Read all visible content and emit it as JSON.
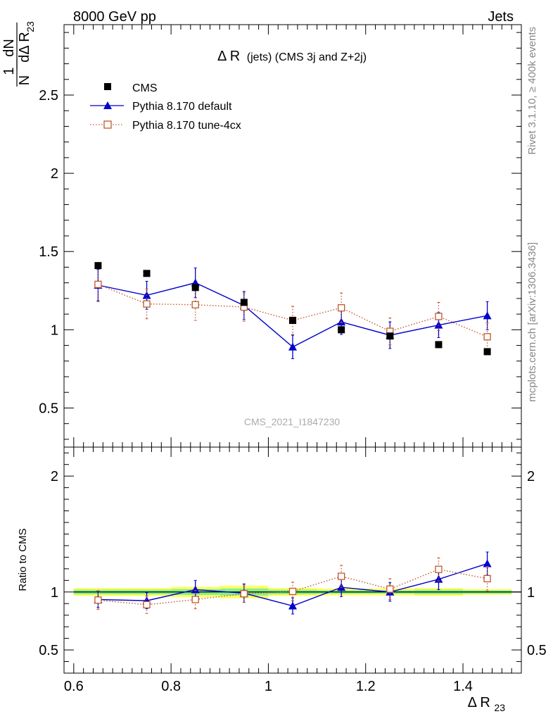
{
  "header": {
    "left": "8000 GeV pp",
    "right": "Jets"
  },
  "side_text": {
    "rivet": "Rivet 3.1.10, ≥ 400k events",
    "mcplots": "mcplots.cern.ch [arXiv:1306.3436]"
  },
  "chart_data": [
    {
      "type": "scatter",
      "title": "Δ R (jets) (CMS 3j and Z+2j)",
      "title_main": "Δ R",
      "title_rest": "(jets) (CMS 3j and Z+2j)",
      "ylabel": "1/N dN/dΔ R23",
      "ylabel_parts": {
        "one": "1",
        "N": "N",
        "dN": "dN",
        "d": "dΔ R",
        "sub": "23"
      },
      "watermark": "CMS_2021_I1847230",
      "xlim": [
        0.58,
        1.52
      ],
      "ylim": [
        0.25,
        2.95
      ],
      "yticks": [
        0.5,
        1,
        1.5,
        2,
        2.5
      ],
      "ytick_labels": [
        "0.5",
        "1",
        "1.5",
        "2",
        "2.5"
      ],
      "legend_position": "top-left",
      "x": [
        0.65,
        0.75,
        0.85,
        0.95,
        1.05,
        1.15,
        1.25,
        1.35,
        1.45
      ],
      "series": [
        {
          "name": "CMS",
          "color": "#000000",
          "marker": "filled-square",
          "values": [
            1.41,
            1.36,
            1.27,
            1.175,
            1.06,
            1.0,
            0.96,
            0.905,
            0.86
          ],
          "errors": [
            0.0,
            0.0,
            0.0,
            0.0,
            0.0,
            0.0,
            0.0,
            0.0,
            0.0
          ]
        },
        {
          "name": "Pythia 8.170 default",
          "color": "#0000cc",
          "marker": "filled-triangle",
          "line": "solid",
          "values": [
            1.285,
            1.22,
            1.3,
            1.155,
            0.89,
            1.05,
            0.965,
            1.03,
            1.09
          ],
          "errors": [
            0.1,
            0.09,
            0.095,
            0.09,
            0.075,
            0.08,
            0.085,
            0.08,
            0.09
          ]
        },
        {
          "name": "Pythia 8.170 tune-4cx",
          "color": "#c0582a",
          "marker": "open-square",
          "line": "dotted",
          "values": [
            1.29,
            1.165,
            1.16,
            1.145,
            1.06,
            1.14,
            0.99,
            1.085,
            0.955
          ],
          "errors": [
            0.11,
            0.095,
            0.1,
            0.09,
            0.09,
            0.095,
            0.085,
            0.09,
            0.09
          ]
        }
      ]
    },
    {
      "type": "scatter",
      "ylabel": "Ratio to CMS",
      "xlabel": "Δ R23",
      "xlabel_main": "Δ R",
      "xlabel_sub": "23",
      "xlim": [
        0.58,
        1.52
      ],
      "ylim": [
        0.3,
        2.25
      ],
      "xticks": [
        0.6,
        0.8,
        1.0,
        1.2,
        1.4
      ],
      "xtick_labels": [
        "0.6",
        "0.8",
        "1",
        "1.2",
        "1.4"
      ],
      "yticks": [
        0.5,
        1,
        2
      ],
      "ytick_labels": [
        "0.5",
        "1",
        "2"
      ],
      "x": [
        0.65,
        0.75,
        0.85,
        0.95,
        1.05,
        1.15,
        1.25,
        1.35,
        1.45
      ],
      "uncertainty_band": {
        "colors": {
          "outer": "#ffff66",
          "inner": "#88ee88"
        },
        "outer_halfwidth": [
          0.035,
          0.035,
          0.045,
          0.055,
          0.035,
          0.03,
          0.03,
          0.035,
          0.025
        ],
        "inner_halfwidth": [
          0.02,
          0.02,
          0.025,
          0.03,
          0.02,
          0.015,
          0.015,
          0.02,
          0.015
        ]
      },
      "series": [
        {
          "name": "Pythia 8.170 default",
          "color": "#0000cc",
          "marker": "filled-triangle",
          "line": "solid",
          "values": [
            0.935,
            0.925,
            1.02,
            0.99,
            0.88,
            1.04,
            1.0,
            1.11,
            1.245
          ],
          "errors": [
            0.07,
            0.07,
            0.08,
            0.08,
            0.07,
            0.08,
            0.08,
            0.09,
            0.1
          ]
        },
        {
          "name": "Pythia 8.170 tune-4cx",
          "color": "#c0582a",
          "marker": "open-square",
          "line": "dotted",
          "values": [
            0.93,
            0.89,
            0.935,
            0.985,
            1.005,
            1.135,
            1.025,
            1.195,
            1.115
          ],
          "errors": [
            0.08,
            0.075,
            0.08,
            0.075,
            0.08,
            0.095,
            0.09,
            0.1,
            0.105
          ]
        }
      ]
    }
  ]
}
